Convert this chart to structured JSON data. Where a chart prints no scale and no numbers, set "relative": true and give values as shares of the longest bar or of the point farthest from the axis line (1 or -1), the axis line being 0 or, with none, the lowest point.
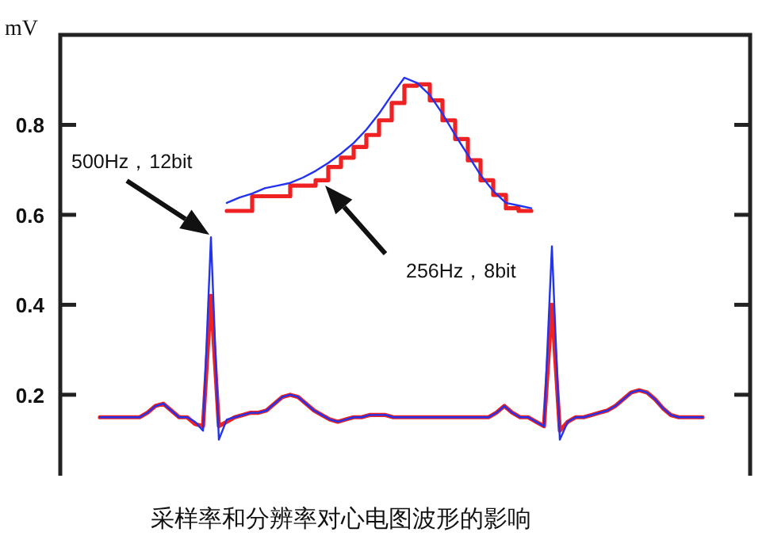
{
  "chart_data": [
    {
      "type": "line",
      "title": "采样率和分辨率对心电图波形的影响",
      "ylabel": "mV",
      "ylim": [
        0.02,
        1.0
      ],
      "yticks": [
        0.2,
        0.4,
        0.6,
        0.8
      ],
      "tick_labels": "y",
      "categories": [
        null,
        null,
        null,
        null,
        null,
        null,
        null,
        null,
        null,
        null,
        null,
        null,
        null,
        null,
        null,
        null,
        null,
        null,
        null,
        null,
        null,
        null,
        null,
        null,
        null,
        null,
        null,
        null,
        null,
        null,
        null,
        null,
        null,
        null,
        null,
        null,
        null,
        null,
        null,
        null,
        null,
        null,
        null,
        null,
        null,
        null,
        null,
        null,
        null,
        null,
        null,
        null,
        null,
        null,
        null,
        null,
        null,
        null,
        null,
        null,
        null,
        null,
        null,
        null,
        null,
        null,
        null,
        null,
        null,
        null,
        null,
        null,
        null,
        null,
        null,
        null,
        null
      ],
      "series": [
        {
          "color": "#2233ee",
          "values": [
            0.15,
            0.15,
            0.15,
            0.15,
            0.15,
            0.15,
            0.16,
            0.175,
            0.18,
            0.165,
            0.15,
            0.15,
            0.14,
            0.12,
            0.55,
            0.1,
            0.145,
            0.15,
            0.155,
            0.16,
            0.16,
            0.165,
            0.18,
            0.195,
            0.2,
            0.195,
            0.18,
            0.165,
            0.155,
            0.145,
            0.14,
            0.145,
            0.15,
            0.15,
            0.155,
            0.155,
            0.155,
            0.15,
            0.15,
            0.15,
            0.15,
            0.15,
            0.15,
            0.15,
            0.15,
            0.15,
            0.15,
            0.15,
            0.15,
            0.15,
            0.16,
            0.175,
            0.16,
            0.15,
            0.15,
            0.14,
            0.13,
            0.53,
            0.1,
            0.14,
            0.15,
            0.15,
            0.155,
            0.16,
            0.165,
            0.175,
            0.19,
            0.205,
            0.21,
            0.205,
            0.19,
            0.17,
            0.155,
            0.15,
            0.15,
            0.15,
            0.15
          ]
        },
        {
          "color": "#ee2222",
          "values": [
            0.15,
            0.15,
            0.15,
            0.15,
            0.15,
            0.15,
            0.16,
            0.175,
            0.18,
            0.165,
            0.15,
            0.15,
            0.135,
            0.13,
            0.42,
            0.13,
            0.14,
            0.15,
            0.155,
            0.16,
            0.16,
            0.165,
            0.18,
            0.195,
            0.2,
            0.195,
            0.18,
            0.165,
            0.155,
            0.145,
            0.14,
            0.145,
            0.15,
            0.15,
            0.155,
            0.155,
            0.155,
            0.15,
            0.15,
            0.15,
            0.15,
            0.15,
            0.15,
            0.15,
            0.15,
            0.15,
            0.15,
            0.15,
            0.15,
            0.15,
            0.16,
            0.175,
            0.16,
            0.15,
            0.15,
            0.14,
            0.13,
            0.4,
            0.12,
            0.14,
            0.15,
            0.15,
            0.155,
            0.16,
            0.165,
            0.175,
            0.19,
            0.205,
            0.21,
            0.205,
            0.19,
            0.17,
            0.155,
            0.15,
            0.15,
            0.15,
            0.15
          ]
        }
      ],
      "annotations": [
        "500Hz，12bit"
      ]
    },
    {
      "type": "line",
      "relative": true,
      "categories": [
        null,
        null,
        null,
        null,
        null,
        null,
        null,
        null,
        null,
        null,
        null,
        null,
        null,
        null,
        null,
        null,
        null,
        null,
        null,
        null,
        null,
        null,
        null,
        null,
        null
      ],
      "series": [
        {
          "color": "#2233ee",
          "values": [
            0.06,
            0.1,
            0.13,
            0.17,
            0.19,
            0.21,
            0.25,
            0.3,
            0.36,
            0.43,
            0.51,
            0.61,
            0.73,
            0.87,
            1.0,
            0.96,
            0.87,
            0.73,
            0.57,
            0.42,
            0.27,
            0.15,
            0.06,
            0.04,
            0.02
          ]
        },
        {
          "type": "step",
          "color": "#ee2222",
          "values": [
            0,
            0,
            0.11,
            0.11,
            0.11,
            0.19,
            0.19,
            0.23,
            0.33,
            0.4,
            0.48,
            0.57,
            0.68,
            0.81,
            0.94,
            0.95,
            0.83,
            0.68,
            0.54,
            0.38,
            0.23,
            0.12,
            0.02,
            0,
            0
          ]
        }
      ],
      "annotations": [
        "256Hz，8bit"
      ]
    }
  ]
}
